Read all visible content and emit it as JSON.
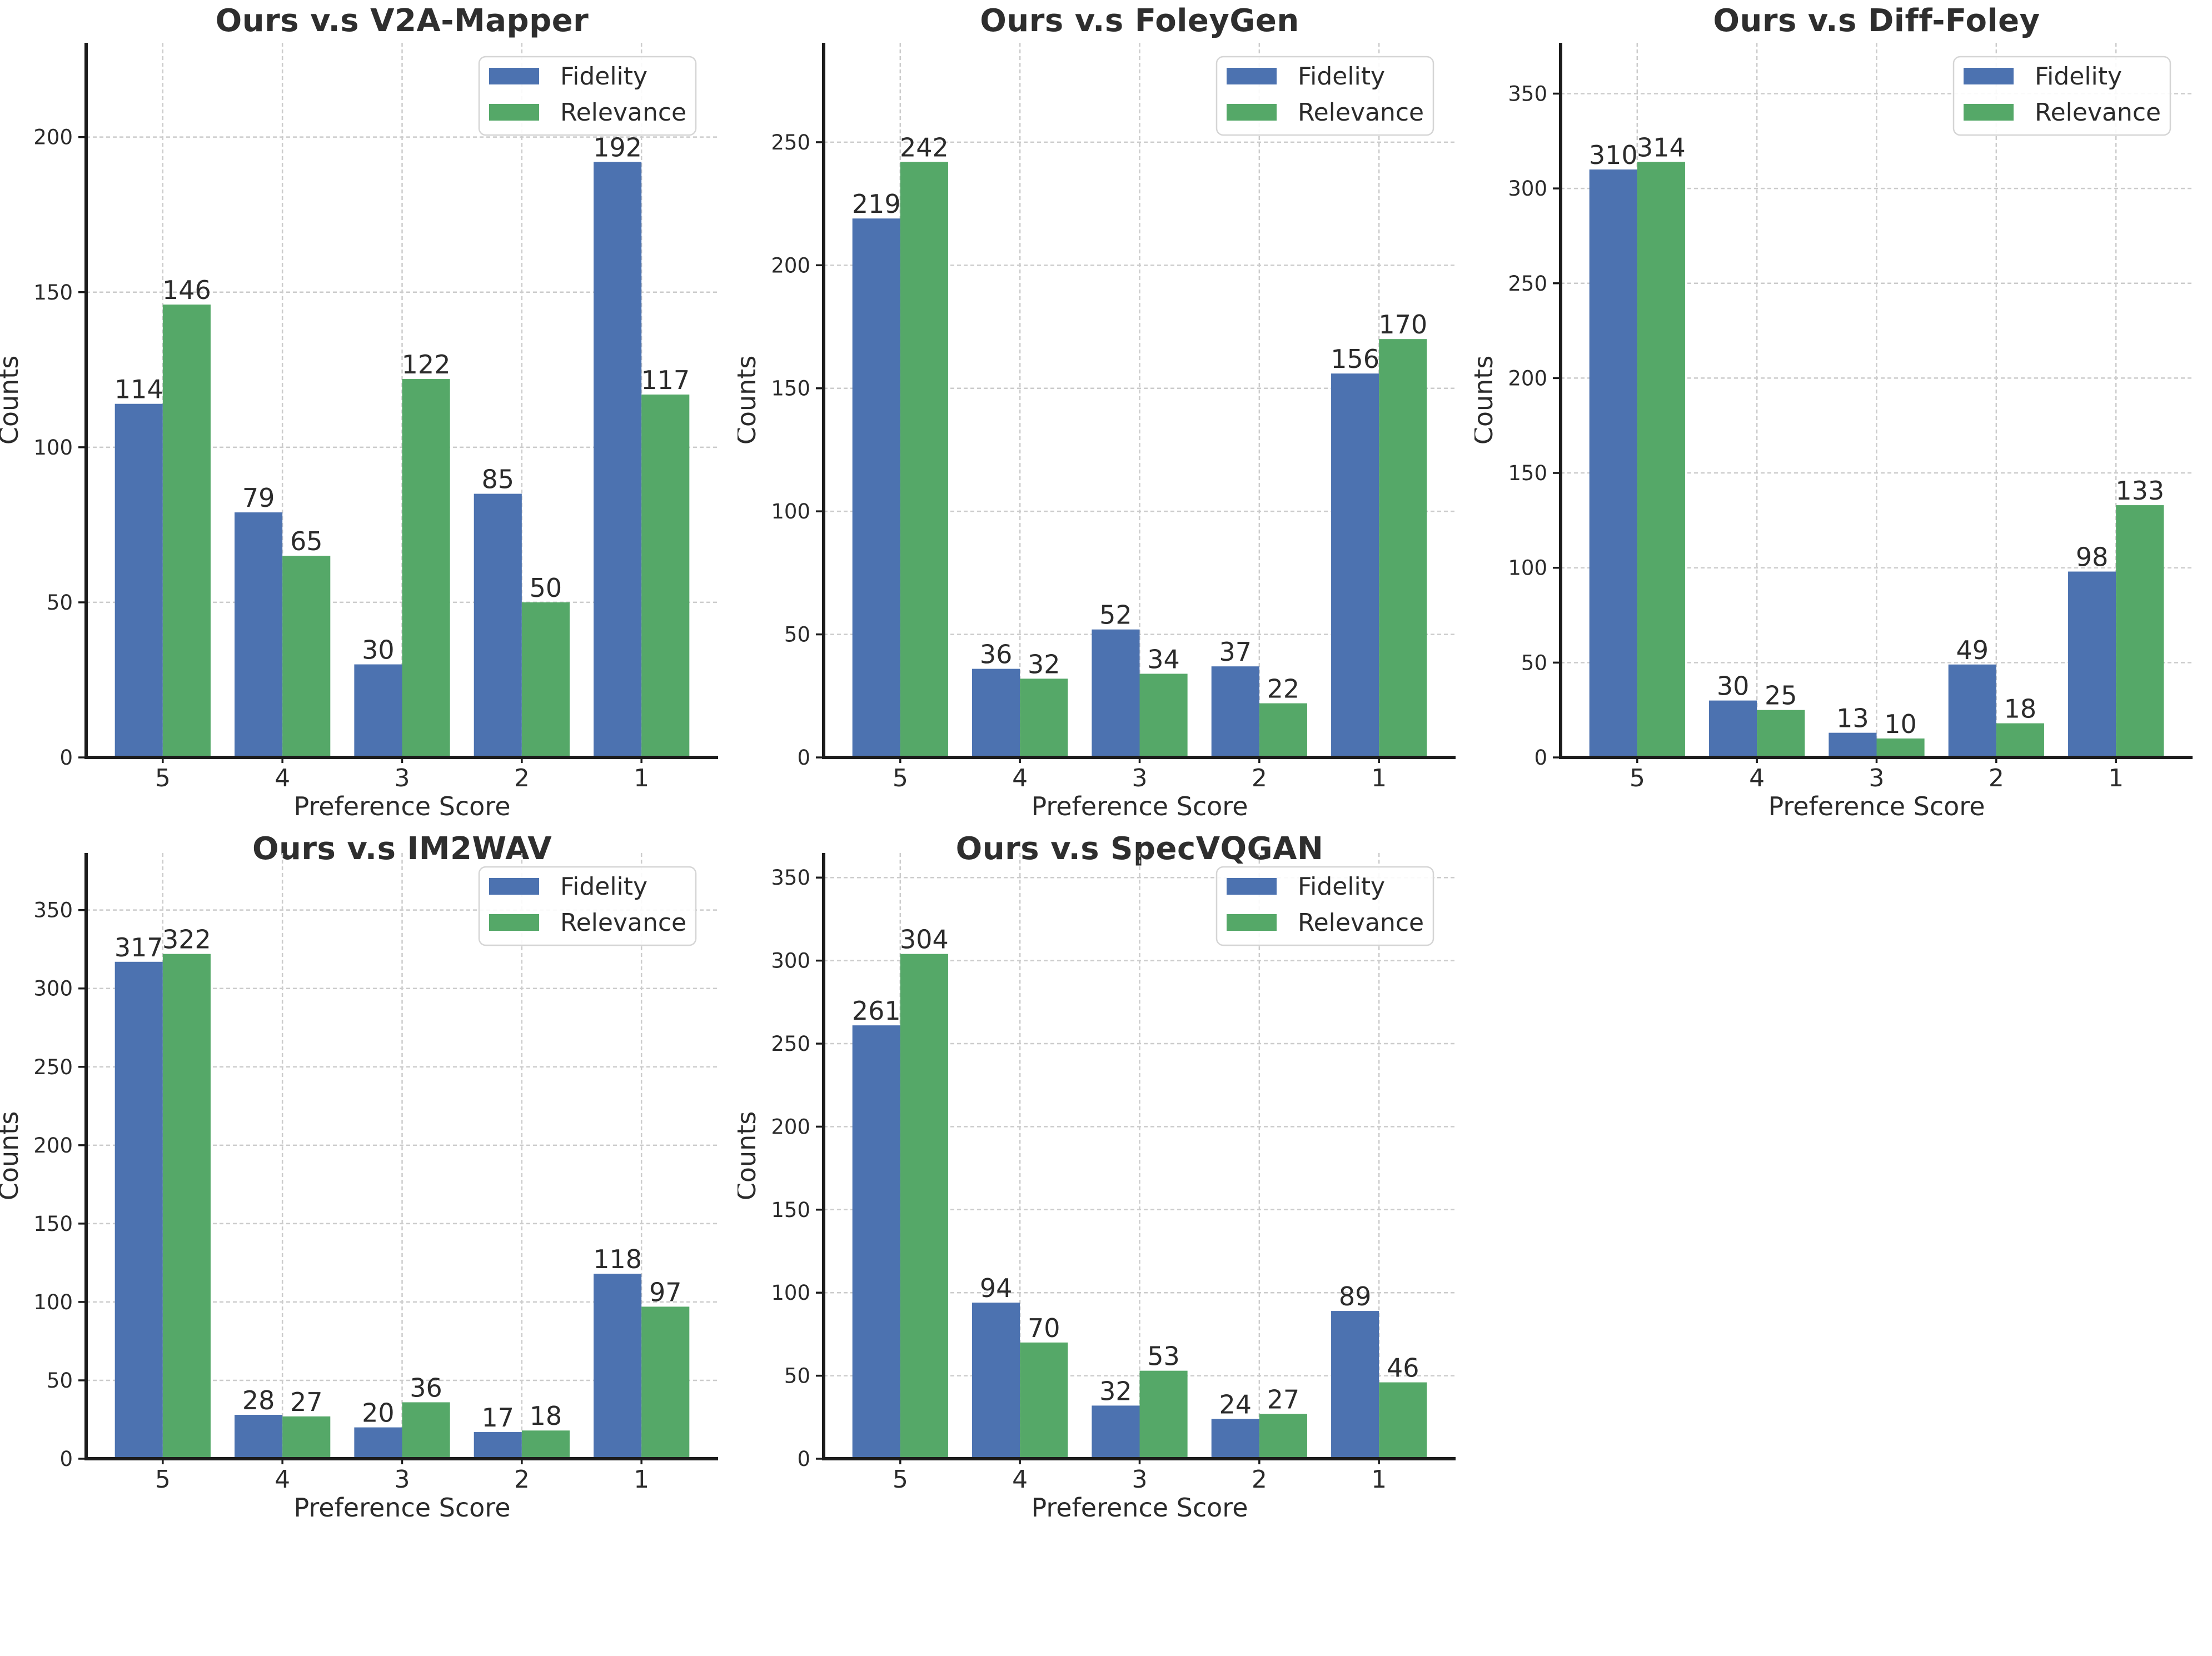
{
  "figure": {
    "background": "#ffffff",
    "text_color": "#2b2b2b",
    "axis_color": "#1c1c1c",
    "grid_color": "#cccccc",
    "legend_border_color": "#d5d5d5"
  },
  "palette": {
    "fidelity": "#4C72B0",
    "relevance": "#55A868"
  },
  "chart_data": [
    {
      "type": "bar",
      "title": "Ours v.s V2A-Mapper",
      "xlabel": "Preference Score",
      "ylabel": "Counts",
      "categories": [
        "5",
        "4",
        "3",
        "2",
        "1"
      ],
      "series": [
        {
          "name": "Fidelity",
          "color": "#4C72B0",
          "values": [
            114,
            79,
            30,
            85,
            192
          ]
        },
        {
          "name": "Relevance",
          "color": "#55A868",
          "values": [
            146,
            65,
            122,
            50,
            117
          ]
        }
      ],
      "yticks": [
        0,
        50,
        100,
        150,
        200
      ],
      "ylim": [
        0,
        230.4
      ],
      "grid": true,
      "legend_position": "upper right"
    },
    {
      "type": "bar",
      "title": "Ours v.s FoleyGen",
      "xlabel": "Preference Score",
      "ylabel": "Counts",
      "categories": [
        "5",
        "4",
        "3",
        "2",
        "1"
      ],
      "series": [
        {
          "name": "Fidelity",
          "color": "#4C72B0",
          "values": [
            219,
            36,
            52,
            37,
            156
          ]
        },
        {
          "name": "Relevance",
          "color": "#55A868",
          "values": [
            242,
            32,
            34,
            22,
            170
          ]
        }
      ],
      "yticks": [
        0,
        50,
        100,
        150,
        200,
        250
      ],
      "ylim": [
        0,
        290.4
      ],
      "grid": true,
      "legend_position": "upper right"
    },
    {
      "type": "bar",
      "title": "Ours v.s Diff-Foley",
      "xlabel": "Preference Score",
      "ylabel": "Counts",
      "categories": [
        "5",
        "4",
        "3",
        "2",
        "1"
      ],
      "series": [
        {
          "name": "Fidelity",
          "color": "#4C72B0",
          "values": [
            310,
            30,
            13,
            49,
            98
          ]
        },
        {
          "name": "Relevance",
          "color": "#55A868",
          "values": [
            314,
            25,
            10,
            18,
            133
          ]
        }
      ],
      "yticks": [
        0,
        50,
        100,
        150,
        200,
        250,
        300,
        350
      ],
      "ylim": [
        0,
        376.8
      ],
      "grid": true,
      "legend_position": "upper right"
    },
    {
      "type": "bar",
      "title": "Ours v.s IM2WAV",
      "xlabel": "Preference Score",
      "ylabel": "Counts",
      "categories": [
        "5",
        "4",
        "3",
        "2",
        "1"
      ],
      "series": [
        {
          "name": "Fidelity",
          "color": "#4C72B0",
          "values": [
            317,
            28,
            20,
            17,
            118
          ]
        },
        {
          "name": "Relevance",
          "color": "#55A868",
          "values": [
            322,
            27,
            36,
            18,
            97
          ]
        }
      ],
      "yticks": [
        0,
        50,
        100,
        150,
        200,
        250,
        300,
        350
      ],
      "ylim": [
        0,
        386.4
      ],
      "grid": true,
      "legend_position": "upper right"
    },
    {
      "type": "bar",
      "title": "Ours v.s SpecVQGAN",
      "xlabel": "Preference Score",
      "ylabel": "Counts",
      "categories": [
        "5",
        "4",
        "3",
        "2",
        "1"
      ],
      "series": [
        {
          "name": "Fidelity",
          "color": "#4C72B0",
          "values": [
            261,
            94,
            32,
            24,
            89
          ]
        },
        {
          "name": "Relevance",
          "color": "#55A868",
          "values": [
            304,
            70,
            53,
            27,
            46
          ]
        }
      ],
      "yticks": [
        0,
        50,
        100,
        150,
        200,
        250,
        300,
        350
      ],
      "ylim": [
        0,
        364.8
      ],
      "grid": true,
      "legend_position": "upper right"
    }
  ]
}
